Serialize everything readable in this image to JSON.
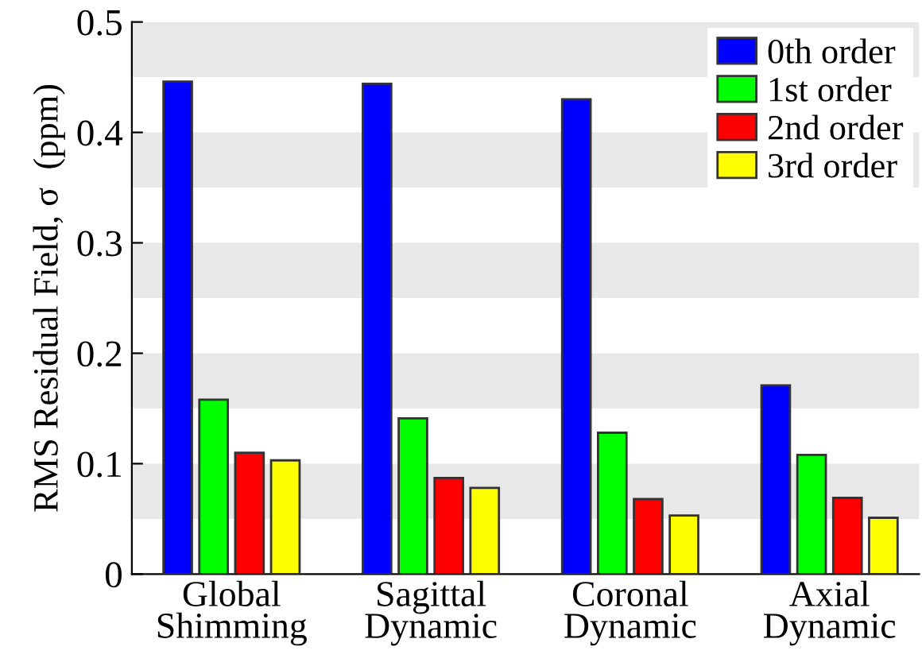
{
  "chart_data": {
    "type": "bar",
    "ylabel": "RMS Residual Field, σ  (ppm)",
    "categories": [
      "Global\nShimming",
      "Sagittal\nDynamic",
      "Coronal\nDynamic",
      "Axial\nDynamic"
    ],
    "series": [
      {
        "name": "0th order",
        "color": "#0000ff",
        "values": [
          0.446,
          0.444,
          0.43,
          0.171
        ]
      },
      {
        "name": "1st order",
        "color": "#00ff00",
        "values": [
          0.158,
          0.141,
          0.128,
          0.108
        ]
      },
      {
        "name": "2nd order",
        "color": "#ff0000",
        "values": [
          0.11,
          0.087,
          0.068,
          0.069
        ]
      },
      {
        "name": "3rd order",
        "color": "#ffff00",
        "values": [
          0.103,
          0.078,
          0.053,
          0.051
        ]
      }
    ],
    "ylim": [
      0,
      0.5
    ],
    "yticks": [
      0,
      0.1,
      0.2,
      0.3,
      0.4,
      0.5
    ],
    "bands": [
      {
        "axis": "y",
        "from": 0.05,
        "to": 0.1,
        "color": "#e8e8e8"
      },
      {
        "axis": "y",
        "from": 0.15,
        "to": 0.2,
        "color": "#e8e8e8"
      },
      {
        "axis": "y",
        "from": 0.25,
        "to": 0.3,
        "color": "#e8e8e8"
      },
      {
        "axis": "y",
        "from": 0.35,
        "to": 0.4,
        "color": "#e8e8e8"
      },
      {
        "axis": "y",
        "from": 0.45,
        "to": 0.5,
        "color": "#e8e8e8"
      }
    ],
    "legend": "top right",
    "grid": false
  }
}
